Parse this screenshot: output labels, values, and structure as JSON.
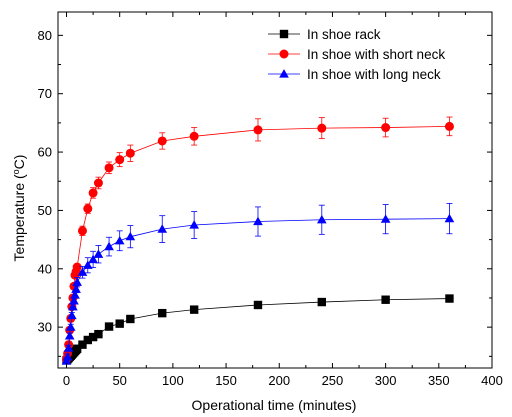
{
  "chart_data": {
    "type": "line",
    "xlabel": "Operational time (minutes)",
    "ylabel_prefix": "Temperature (",
    "ylabel_degree": "o",
    "ylabel_suffix": "C)",
    "xlim": [
      -8,
      400
    ],
    "ylim": [
      23,
      84
    ],
    "xticks": [
      0,
      50,
      100,
      150,
      200,
      250,
      300,
      350,
      400
    ],
    "yticks": [
      30,
      40,
      50,
      60,
      70,
      80
    ],
    "grid": false,
    "legend_position": "top-right",
    "series": [
      {
        "name": "In shoe rack",
        "color": "#000000",
        "marker": "square",
        "x": [
          0,
          1,
          2,
          3,
          4,
          5,
          6,
          7,
          8,
          9,
          10,
          15,
          20,
          25,
          30,
          40,
          50,
          60,
          90,
          120,
          180,
          240,
          300,
          360
        ],
        "y": [
          24.3,
          24.5,
          24.7,
          24.9,
          25.1,
          25.3,
          25.5,
          25.7,
          25.9,
          26.1,
          26.3,
          27.0,
          27.8,
          28.3,
          28.8,
          30.1,
          30.6,
          31.4,
          32.4,
          33.0,
          33.8,
          34.3,
          34.7,
          34.9
        ],
        "errors": [
          0.3,
          0.3,
          0.3,
          0.3,
          0.3,
          0.3,
          0.3,
          0.3,
          0.3,
          0.3,
          0.3,
          0.3,
          0.3,
          0.3,
          0.3,
          0.3,
          0.3,
          0.3,
          0.6,
          0.5,
          0.6,
          0.4,
          0.4,
          0.4
        ]
      },
      {
        "name": "In shoe with short neck",
        "color": "#ff0000",
        "marker": "circle",
        "x": [
          0,
          1,
          2,
          3,
          4,
          5,
          6,
          7,
          8,
          9,
          10,
          15,
          20,
          25,
          30,
          40,
          50,
          60,
          90,
          120,
          180,
          240,
          300,
          360
        ],
        "y": [
          24.5,
          25.5,
          27.0,
          29.5,
          31.5,
          33.5,
          35.0,
          37.0,
          38.9,
          39.5,
          40.3,
          46.5,
          50.3,
          53.0,
          54.7,
          57.3,
          58.7,
          59.8,
          61.9,
          62.7,
          63.8,
          64.1,
          64.2,
          64.4
        ],
        "errors": [
          0.5,
          0.5,
          0.5,
          0.5,
          0.5,
          0.5,
          0.5,
          0.5,
          0.5,
          0.5,
          0.5,
          0.8,
          0.8,
          0.9,
          1.0,
          1.0,
          1.2,
          1.4,
          1.4,
          1.5,
          1.9,
          1.8,
          1.6,
          1.6
        ]
      },
      {
        "name": "In shoe with long neck",
        "color": "#0000ff",
        "marker": "triangle",
        "x": [
          0,
          1,
          2,
          3,
          4,
          5,
          6,
          7,
          8,
          9,
          10,
          15,
          20,
          25,
          30,
          40,
          50,
          60,
          90,
          120,
          180,
          240,
          300,
          360
        ],
        "y": [
          24.2,
          24.9,
          26.4,
          28.5,
          30.0,
          32.0,
          33.5,
          34.5,
          35.5,
          36.5,
          37.7,
          39.4,
          40.6,
          41.6,
          42.5,
          43.8,
          44.8,
          45.5,
          46.8,
          47.5,
          48.1,
          48.4,
          48.5,
          48.6
        ],
        "errors": [
          0.5,
          0.5,
          0.5,
          0.5,
          0.5,
          0.5,
          0.5,
          0.5,
          0.5,
          0.6,
          0.8,
          1.0,
          1.3,
          1.4,
          1.5,
          1.6,
          1.7,
          1.9,
          2.3,
          2.3,
          2.5,
          2.5,
          2.5,
          2.6
        ]
      }
    ]
  }
}
